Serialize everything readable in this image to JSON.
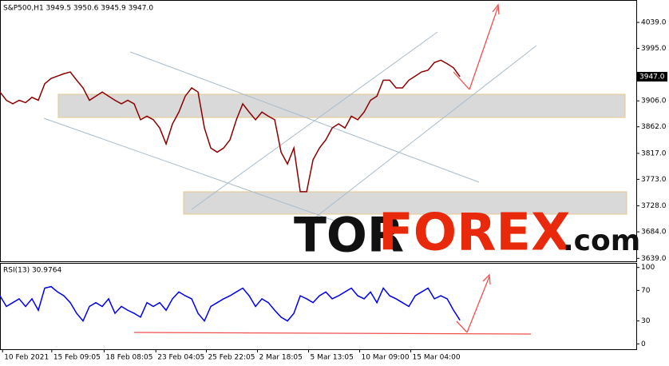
{
  "chart_data": [
    {
      "type": "line",
      "title": "S&P500,H1  3949.5 3950.6 3945.9 3947.0",
      "last_price_label": "3947.0",
      "watermark": [
        "TOR",
        "FOREX",
        ".com"
      ],
      "x": [
        0,
        1,
        2,
        3,
        4,
        5,
        6,
        7,
        8,
        9,
        10,
        11,
        12,
        13,
        14,
        15,
        16,
        17,
        18,
        19,
        20,
        21,
        22,
        23,
        24,
        25,
        26,
        27,
        28,
        29,
        30,
        31,
        32,
        33,
        34,
        35,
        36,
        37,
        38,
        39,
        40,
        41,
        42,
        43,
        44,
        45,
        46,
        47,
        48,
        49,
        50,
        51,
        52,
        53,
        54,
        55,
        56,
        57,
        58,
        59,
        60,
        61,
        62,
        63,
        64,
        65,
        66,
        67,
        68,
        69,
        70,
        71,
        72
      ],
      "series": [
        {
          "color": "#8b0000",
          "values": [
            3921,
            3907,
            3901,
            3907,
            3903,
            3912,
            3907,
            3935,
            3944,
            3948,
            3952,
            3955,
            3941,
            3928,
            3907,
            3914,
            3921,
            3914,
            3907,
            3901,
            3907,
            3901,
            3874,
            3880,
            3874,
            3860,
            3833,
            3867,
            3887,
            3914,
            3928,
            3921,
            3860,
            3826,
            3819,
            3826,
            3840,
            3874,
            3901,
            3887,
            3874,
            3887,
            3880,
            3874,
            3819,
            3799,
            3826,
            3752,
            3752,
            3806,
            3826,
            3840,
            3860,
            3867,
            3860,
            3880,
            3874,
            3887,
            3907,
            3914,
            3941,
            3941,
            3928,
            3928,
            3941,
            3948,
            3955,
            3958,
            3971,
            3975,
            3969,
            3962,
            3947
          ]
        }
      ],
      "xlim": [
        0,
        99.6
      ],
      "ylim": [
        3634,
        4077
      ],
      "yticks": [
        {
          "value": 4039,
          "label": "4039.0"
        },
        {
          "value": 3995,
          "label": "3995.0"
        },
        {
          "value": 3906,
          "label": "3906.0"
        },
        {
          "value": 3862,
          "label": "3862.0"
        },
        {
          "value": 3817,
          "label": "3817.0"
        },
        {
          "value": 3773,
          "label": "3773.0"
        },
        {
          "value": 3728,
          "label": "3728.0"
        },
        {
          "value": 3684,
          "label": "3684.0"
        },
        {
          "value": 3639,
          "label": "3639.0"
        }
      ]
    },
    {
      "type": "line",
      "title": "RSI(13) 30.9764",
      "x": [
        0,
        1,
        2,
        3,
        4,
        5,
        6,
        7,
        8,
        9,
        10,
        11,
        12,
        13,
        14,
        15,
        16,
        17,
        18,
        19,
        20,
        21,
        22,
        23,
        24,
        25,
        26,
        27,
        28,
        29,
        30,
        31,
        32,
        33,
        34,
        35,
        36,
        37,
        38,
        39,
        40,
        41,
        42,
        43,
        44,
        45,
        46,
        47,
        48,
        49,
        50,
        51,
        52,
        53,
        54,
        55,
        56,
        57,
        58,
        59,
        60,
        61,
        62,
        63,
        64,
        65,
        66,
        67,
        68,
        69,
        70,
        71,
        72
      ],
      "series": [
        {
          "color": "#0000ee",
          "values": [
            63,
            49,
            54,
            59,
            49,
            59,
            44,
            73,
            75,
            68,
            63,
            54,
            40,
            30,
            49,
            54,
            49,
            59,
            40,
            49,
            44,
            40,
            35,
            54,
            49,
            54,
            44,
            59,
            68,
            63,
            59,
            40,
            30,
            49,
            54,
            59,
            63,
            68,
            73,
            63,
            49,
            59,
            54,
            44,
            35,
            30,
            40,
            63,
            59,
            54,
            63,
            68,
            59,
            63,
            68,
            73,
            63,
            59,
            68,
            54,
            73,
            63,
            59,
            54,
            49,
            63,
            68,
            73,
            59,
            63,
            59,
            44,
            31
          ]
        }
      ],
      "xlim": [
        0,
        99.6
      ],
      "ylim": [
        -7,
        106
      ],
      "yticks": [
        100,
        70,
        30,
        0
      ],
      "xticks": [
        {
          "value": 0.4,
          "label": "10 Feb 2021"
        },
        {
          "value": 8.1,
          "label": "15 Feb 09:05"
        },
        {
          "value": 16.3,
          "label": "18 Feb 08:05"
        },
        {
          "value": 24.4,
          "label": "23 Feb 04:05"
        },
        {
          "value": 32.3,
          "label": "25 Feb 22:05"
        },
        {
          "value": 40.3,
          "label": "2 Mar 18:05"
        },
        {
          "value": 48.3,
          "label": "5 Mar 13:05"
        },
        {
          "value": 56.3,
          "label": "10 Mar 09:00"
        },
        {
          "value": 64.3,
          "label": "15 Mar 04:00"
        }
      ]
    }
  ]
}
